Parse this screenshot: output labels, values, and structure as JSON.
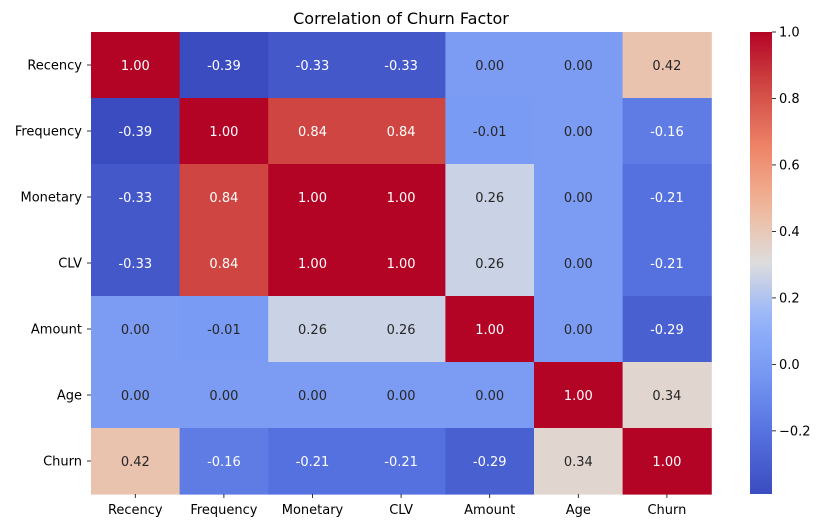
{
  "chart_data": {
    "type": "heatmap",
    "title": "Correlation of Churn Factor",
    "xlabel": "",
    "ylabel": "",
    "x_categories": [
      "Recency",
      "Frequency",
      "Monetary",
      "CLV",
      "Amount",
      "Age",
      "Churn"
    ],
    "y_categories": [
      "Recency",
      "Frequency",
      "Monetary",
      "CLV",
      "Amount",
      "Age",
      "Churn"
    ],
    "values": [
      [
        1.0,
        -0.39,
        -0.33,
        -0.33,
        0.0,
        0.0,
        0.42
      ],
      [
        -0.39,
        1.0,
        0.84,
        0.84,
        -0.01,
        0.0,
        -0.16
      ],
      [
        -0.33,
        0.84,
        1.0,
        1.0,
        0.26,
        0.0,
        -0.21
      ],
      [
        -0.33,
        0.84,
        1.0,
        1.0,
        0.26,
        0.0,
        -0.21
      ],
      [
        0.0,
        -0.01,
        0.26,
        0.26,
        1.0,
        0.0,
        -0.29
      ],
      [
        0.0,
        0.0,
        0.0,
        0.0,
        0.0,
        1.0,
        0.34
      ],
      [
        0.42,
        -0.16,
        -0.21,
        -0.21,
        -0.29,
        0.34,
        1.0
      ]
    ],
    "annotation_format": "2 decimals",
    "colormap": "coolwarm",
    "color_range": [
      -0.39,
      1.0
    ],
    "colorbar_ticks": [
      1.0,
      0.8,
      0.6,
      0.4,
      0.2,
      0.0,
      -0.2
    ],
    "colorbar_tick_labels": [
      "1.0",
      "0.8",
      "0.6",
      "0.4",
      "0.2",
      "0.0",
      "−0.2"
    ],
    "grid": false,
    "legend": "colorbar right"
  }
}
